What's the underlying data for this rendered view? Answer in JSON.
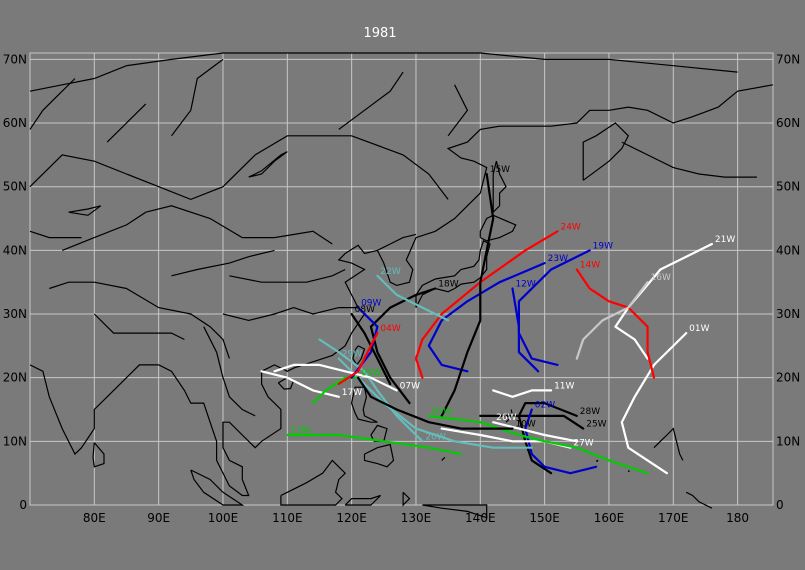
{
  "map": {
    "title": "1981",
    "lat_labels": [
      "0",
      "10N",
      "20N",
      "30N",
      "40N",
      "50N",
      "60N",
      "70N"
    ],
    "lon_labels": [
      "80E",
      "90E",
      "100E",
      "110E",
      "120E",
      "130E",
      "140E",
      "150E",
      "160E",
      "170E",
      "180"
    ],
    "grid": true,
    "colors": {
      "background": "#7a7a7a",
      "grid": "#c8c8c8",
      "coast": "#000000",
      "title": "#ffffff"
    },
    "tracks": [
      {
        "name": "01W",
        "color": "#ffffff",
        "points": [
          [
            169,
            5
          ],
          [
            163,
            9
          ],
          [
            162,
            13
          ],
          [
            164,
            17
          ],
          [
            167,
            22
          ],
          [
            172,
            27
          ]
        ]
      },
      {
        "name": "21W",
        "color": "#ffffff",
        "points": [
          [
            166,
            23
          ],
          [
            164,
            26
          ],
          [
            161,
            28
          ],
          [
            163,
            31
          ],
          [
            168,
            37
          ],
          [
            176,
            41
          ]
        ]
      },
      {
        "name": "14W",
        "color": "#ff0000",
        "points": [
          [
            167,
            20
          ],
          [
            166,
            24
          ],
          [
            166,
            28
          ],
          [
            163,
            31
          ],
          [
            160,
            32
          ],
          [
            157,
            34
          ],
          [
            155,
            37
          ]
        ]
      },
      {
        "name": "16W",
        "color": "#c8c8c8",
        "points": [
          [
            155,
            23
          ],
          [
            156,
            26
          ],
          [
            159,
            29
          ],
          [
            163,
            31
          ],
          [
            166,
            35
          ]
        ]
      },
      {
        "name": "24W",
        "color": "#ff0000",
        "points": [
          [
            131,
            20
          ],
          [
            130,
            23
          ],
          [
            131,
            26
          ],
          [
            134,
            30
          ],
          [
            140,
            35
          ],
          [
            147,
            40
          ],
          [
            152,
            43
          ]
        ]
      },
      {
        "name": "19W",
        "color": "#0000cc",
        "points": [
          [
            152,
            22
          ],
          [
            148,
            23
          ],
          [
            146,
            27
          ],
          [
            146,
            32
          ],
          [
            151,
            37
          ],
          [
            157,
            40
          ]
        ]
      },
      {
        "name": "12W",
        "color": "#0000cc",
        "points": [
          [
            149,
            21
          ],
          [
            146,
            24
          ],
          [
            146,
            28
          ],
          [
            145,
            34
          ]
        ]
      },
      {
        "name": "23W",
        "color": "#0000cc",
        "points": [
          [
            138,
            21
          ],
          [
            134,
            22
          ],
          [
            132,
            25
          ],
          [
            134,
            29
          ],
          [
            138,
            32
          ],
          [
            143,
            35
          ],
          [
            150,
            38
          ]
        ]
      },
      {
        "name": "15W",
        "color": "#000000",
        "points": [
          [
            134,
            14
          ],
          [
            136,
            18
          ],
          [
            138,
            24
          ],
          [
            140,
            29
          ],
          [
            140,
            35
          ],
          [
            141,
            40
          ],
          [
            142,
            45
          ],
          [
            141,
            52
          ]
        ]
      },
      {
        "name": "18W",
        "color": "#000000",
        "points": [
          [
            129,
            16
          ],
          [
            126,
            20
          ],
          [
            124,
            24
          ],
          [
            123,
            28
          ],
          [
            126,
            31
          ],
          [
            130,
            33
          ],
          [
            133,
            34
          ]
        ]
      },
      {
        "name": "28W",
        "color": "#000000",
        "points": [
          [
            151,
            5
          ],
          [
            148,
            7
          ],
          [
            147,
            10
          ],
          [
            146,
            14
          ],
          [
            147,
            16
          ],
          [
            150,
            16
          ],
          [
            155,
            14
          ]
        ]
      },
      {
        "name": "25W",
        "color": "#000000",
        "points": [
          [
            140,
            14
          ],
          [
            146,
            14
          ],
          [
            150,
            14
          ],
          [
            153,
            14
          ],
          [
            156,
            12
          ]
        ]
      },
      {
        "name": "11W",
        "color": "#ffffff",
        "points": [
          [
            142,
            18
          ],
          [
            145,
            17
          ],
          [
            148,
            18
          ],
          [
            151,
            18
          ]
        ]
      },
      {
        "name": "02W",
        "color": "#0000cc",
        "points": [
          [
            158,
            6
          ],
          [
            154,
            5
          ],
          [
            150,
            6
          ],
          [
            148,
            8
          ],
          [
            147,
            12
          ],
          [
            148,
            15
          ]
        ]
      },
      {
        "name": "27W",
        "color": "#ffffff",
        "points": [
          [
            134,
            12
          ],
          [
            140,
            11
          ],
          [
            145,
            10
          ],
          [
            150,
            10
          ],
          [
            154,
            9
          ]
        ]
      },
      {
        "name": "26W",
        "color": "#ffffff",
        "points": [
          [
            155,
            10
          ],
          [
            150,
            11
          ],
          [
            146,
            12
          ],
          [
            142,
            13
          ]
        ]
      },
      {
        "name": "03W",
        "color": "#00cc00",
        "points": [
          [
            166,
            5
          ],
          [
            160,
            7
          ],
          [
            155,
            9
          ],
          [
            150,
            10
          ],
          [
            146,
            11
          ],
          [
            140,
            13
          ],
          [
            132,
            14
          ]
        ]
      },
      {
        "name": "29W",
        "color": "#66bbbb",
        "points": [
          [
            148,
            9
          ],
          [
            142,
            9
          ],
          [
            136,
            10
          ],
          [
            130,
            12
          ],
          [
            125,
            16
          ],
          [
            121,
            20
          ],
          [
            118,
            23
          ]
        ]
      },
      {
        "name": "13W",
        "color": "#00cc00",
        "points": [
          [
            137,
            8
          ],
          [
            132,
            9
          ],
          [
            125,
            10
          ],
          [
            118,
            11
          ],
          [
            110,
            11
          ]
        ]
      },
      {
        "name": "20W",
        "color": "#66bbbb",
        "points": [
          [
            115,
            26
          ],
          [
            118,
            24
          ],
          [
            122,
            21
          ],
          [
            124,
            18
          ],
          [
            127,
            14
          ],
          [
            131,
            10
          ]
        ]
      },
      {
        "name": "22W",
        "color": "#66bbbb",
        "points": [
          [
            135,
            29
          ],
          [
            131,
            31
          ],
          [
            127,
            33
          ],
          [
            124,
            36
          ]
        ]
      },
      {
        "name": "07W",
        "color": "#ffffff",
        "points": [
          [
            108,
            21
          ],
          [
            111,
            22
          ],
          [
            115,
            22
          ],
          [
            119,
            21
          ],
          [
            123,
            20
          ],
          [
            127,
            18
          ]
        ]
      },
      {
        "name": "17W",
        "color": "#ffffff",
        "points": [
          [
            106,
            21
          ],
          [
            110,
            20
          ],
          [
            114,
            18
          ],
          [
            118,
            17
          ]
        ]
      },
      {
        "name": "05W",
        "color": "#00cc00",
        "points": [
          [
            114,
            16
          ],
          [
            116,
            18
          ],
          [
            119,
            20
          ],
          [
            121,
            20
          ]
        ]
      },
      {
        "name": "09W",
        "color": "#0000cc",
        "points": [
          [
            120,
            20
          ],
          [
            123,
            24
          ],
          [
            124,
            28
          ],
          [
            121,
            31
          ]
        ]
      },
      {
        "name": "08W",
        "color": "#000000",
        "points": [
          [
            126,
            19
          ],
          [
            124,
            23
          ],
          [
            122,
            27
          ],
          [
            120,
            30
          ]
        ]
      },
      {
        "name": "04W",
        "color": "#ff0000",
        "points": [
          [
            118,
            19
          ],
          [
            121,
            21
          ],
          [
            123,
            25
          ],
          [
            124,
            27
          ]
        ]
      },
      {
        "name": "10W",
        "color": "#000000",
        "points": [
          [
            121,
            20
          ],
          [
            123,
            17
          ],
          [
            127,
            15
          ],
          [
            132,
            13
          ],
          [
            137,
            12
          ],
          [
            145,
            12
          ]
        ]
      }
    ]
  }
}
